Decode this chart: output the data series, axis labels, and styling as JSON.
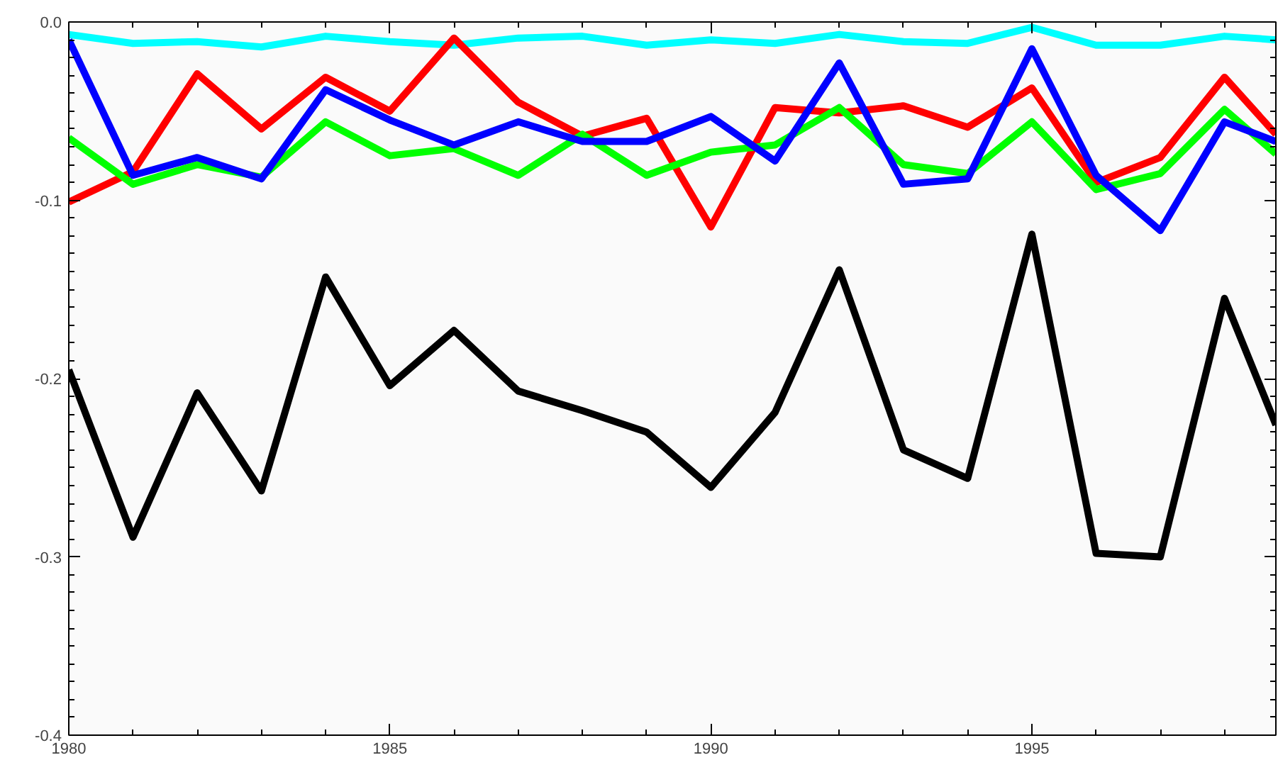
{
  "chart_data": {
    "type": "line",
    "x": [
      1980,
      1981,
      1982,
      1983,
      1984,
      1985,
      1986,
      1987,
      1988,
      1989,
      1990,
      1991,
      1992,
      1993,
      1994,
      1995,
      1996,
      1997,
      1998,
      1998.8
    ],
    "series": [
      {
        "color": "#00ffff",
        "values": [
          -0.007,
          -0.012,
          -0.011,
          -0.014,
          -0.008,
          -0.011,
          -0.013,
          -0.009,
          -0.008,
          -0.013,
          -0.01,
          -0.012,
          -0.007,
          -0.011,
          -0.012,
          -0.003,
          -0.013,
          -0.013,
          -0.008,
          -0.01
        ]
      },
      {
        "color": "#ff0000",
        "values": [
          -0.101,
          -0.084,
          -0.029,
          -0.06,
          -0.031,
          -0.05,
          -0.009,
          -0.045,
          -0.064,
          -0.054,
          -0.115,
          -0.048,
          -0.051,
          -0.047,
          -0.059,
          -0.037,
          -0.09,
          -0.076,
          -0.031,
          -0.063
        ]
      },
      {
        "color": "#00ff00",
        "values": [
          -0.065,
          -0.091,
          -0.08,
          -0.087,
          -0.056,
          -0.075,
          -0.071,
          -0.086,
          -0.063,
          -0.086,
          -0.073,
          -0.069,
          -0.048,
          -0.08,
          -0.085,
          -0.056,
          -0.094,
          -0.085,
          -0.049,
          -0.074
        ]
      },
      {
        "color": "#0000ff",
        "values": [
          -0.01,
          -0.086,
          -0.076,
          -0.088,
          -0.038,
          -0.055,
          -0.069,
          -0.056,
          -0.067,
          -0.067,
          -0.053,
          -0.078,
          -0.023,
          -0.091,
          -0.088,
          -0.015,
          -0.086,
          -0.117,
          -0.056,
          -0.067
        ]
      },
      {
        "color": "#000000",
        "values": [
          -0.195,
          -0.289,
          -0.208,
          -0.263,
          -0.143,
          -0.204,
          -0.173,
          -0.207,
          -0.218,
          -0.23,
          -0.261,
          -0.219,
          -0.139,
          -0.24,
          -0.256,
          -0.119,
          -0.298,
          -0.3,
          -0.155,
          -0.226
        ]
      }
    ],
    "xlim": [
      1980,
      1998.8
    ],
    "xticks": [
      1980,
      1985,
      1990,
      1995
    ],
    "ylim": [
      -0.4,
      0.0
    ],
    "yticks": [
      {
        "value": -0.4,
        "label": "-0.4"
      },
      {
        "value": -0.3,
        "label": "-0.3"
      },
      {
        "value": -0.2,
        "label": "-0.2"
      },
      {
        "value": -0.1,
        "label": "-0.1"
      },
      {
        "value": 0.0,
        "label": "0.0"
      }
    ],
    "grid": false,
    "marker": "none",
    "line_style": "solid"
  }
}
